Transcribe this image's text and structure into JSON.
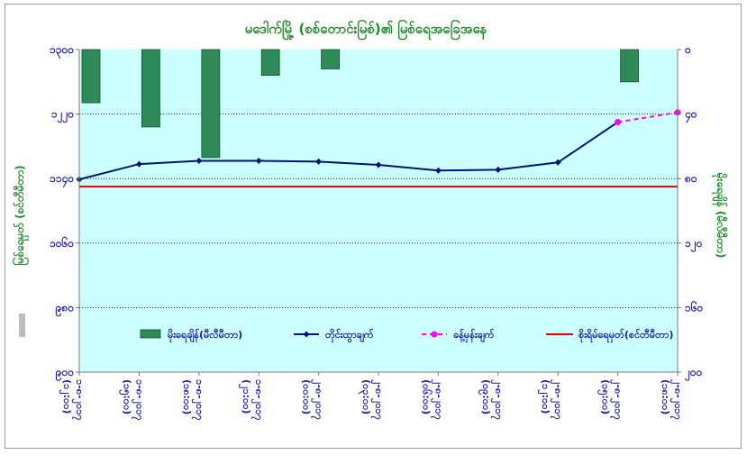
{
  "chart_data": {
    "type": "bar+line",
    "title": "မဒေါက်မြို့ (စစ်တောင်းမြစ်)၏ မြစ်ရေအခြေအနေ",
    "left_axis": {
      "label": "မြစ်ရေမှတ် (စင်တီမီတာ)",
      "min": 900,
      "max": 1300,
      "ticks": [
        900,
        980,
        1060,
        1140,
        1220,
        1300
      ],
      "tick_labels": [
        "၉၀၀",
        "၉၈၀",
        "၁၀၆၀",
        "၁၁၄၀",
        "၁၂၂၀",
        "၁၃၀၀"
      ]
    },
    "right_axis": {
      "label": "မိုးရေချိန် (မီလီမီတာ)",
      "min": 0,
      "max": 200,
      "reversed": true,
      "ticks": [
        0,
        40,
        80,
        120,
        160,
        200
      ],
      "tick_labels": [
        "၀",
        "၄၀",
        "၈၀",
        "၁၂၀",
        "၁၆၀",
        "၂၀၀"
      ]
    },
    "categories": [
      "၁-၈-၂၀၁၇ (၁၂:၀၀)",
      "၁-၈-၂၀၁၇ (၁၅:၀၀)",
      "၁-၈-၂၀၁၇ (၁၈:၀၀)",
      "၁-၈-၂၀၁၇ (၂၁:၀၀)",
      "၂-၈-၂၀၁၇ (၀၀:၀၀)",
      "၂-၈-၂၀၁၇ (၀၃:၀၀)",
      "၂-၈-၂၀၁၇ (၀၆:၀၀)",
      "၂-၈-၂၀၁၇ (၀၉:၀၀)",
      "၂-၈-၂၀၁၇ (၁၂:၀၀)",
      "၂-၈-၂၀၁၇ (၁၅:၀၀)",
      "၂-၈-၂၀၁၇ (၁၈:၀၀)"
    ],
    "series": [
      {
        "name": "မိုးရေချိန်(မီလီမီတာ)",
        "kind": "bar",
        "axis": "right",
        "color": "#2e8b57",
        "values": [
          33,
          48,
          67,
          16,
          12,
          null,
          null,
          null,
          null,
          20,
          null
        ]
      },
      {
        "name": "တိုင်းထွာချက်",
        "kind": "line",
        "axis": "left",
        "color": "#00127a",
        "marker": "diamond",
        "values": [
          1139,
          1158,
          1162,
          1162,
          1161,
          1157,
          1150,
          1151,
          1160,
          1210,
          null
        ]
      },
      {
        "name": "ခန့်မှန်းချက်",
        "kind": "line-dashed",
        "axis": "left",
        "color": "#ff00ff",
        "marker": "circle",
        "values": [
          null,
          null,
          null,
          null,
          null,
          null,
          null,
          null,
          null,
          1210,
          1222
        ]
      },
      {
        "name": "စိုးရိမ်ရေမှတ်(စင်တီမီတာ)",
        "kind": "hline",
        "axis": "left",
        "color": "#e00000",
        "value": 1130
      }
    ],
    "grid": "horizontal",
    "legend_position": "inside-bottom",
    "plot_background": "#ccffff"
  }
}
